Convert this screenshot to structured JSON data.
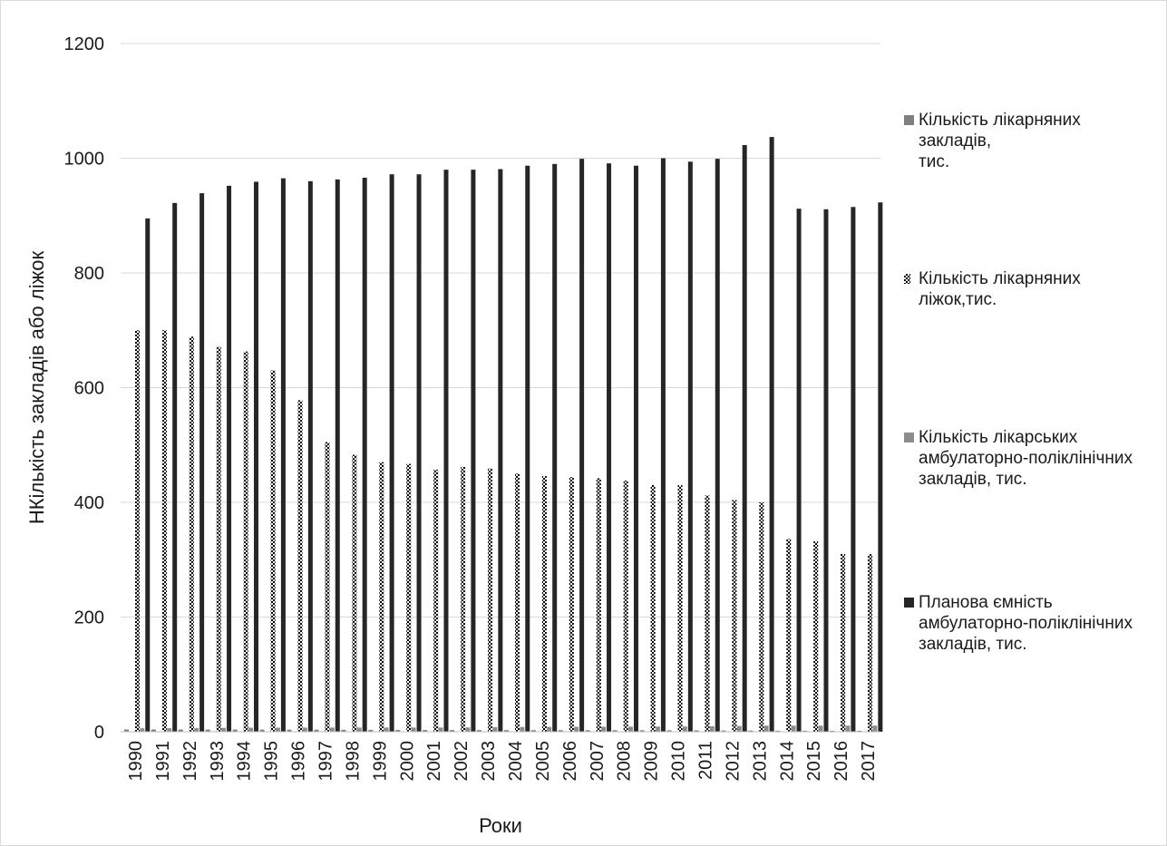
{
  "chart_data": {
    "type": "bar",
    "xlabel": "Роки",
    "ylabel": "НКількість закладів або ліжок",
    "ylim": [
      0,
      1200
    ],
    "yticks": [
      "0",
      "200",
      "400",
      "600",
      "800",
      "1000",
      "1200"
    ],
    "grid": true,
    "legend_position": "right",
    "categories": [
      "1990",
      "1991",
      "1992",
      "1993",
      "1994",
      "1995",
      "1996",
      "1997",
      "1998",
      "1999",
      "2000",
      "2001",
      "2002",
      "2003",
      "2004",
      "2005",
      "2006",
      "2007",
      "2008",
      "2009",
      "2010",
      "2011",
      "2012",
      "2013",
      "2014",
      "2015",
      "2016",
      "2017"
    ],
    "series": [
      {
        "name": "Кількість лікарняних закладів,\nтис.",
        "color": "#7f7f7f",
        "pattern": "solid",
        "values": [
          3.9,
          3.9,
          3.9,
          3.8,
          3.8,
          3.7,
          3.6,
          3.5,
          3.4,
          3.3,
          3.2,
          3.1,
          3.0,
          2.9,
          2.8,
          2.8,
          2.8,
          2.7,
          2.7,
          2.6,
          2.5,
          2.4,
          2.2,
          2.1,
          1.8,
          1.8,
          1.7,
          1.7
        ]
      },
      {
        "name": "Кількість лікарняних ліжок,тис.",
        "color": "#000000",
        "pattern": "checker",
        "values": [
          700,
          700,
          689,
          671,
          663,
          630,
          578,
          505,
          483,
          470,
          467,
          457,
          462,
          459,
          450,
          446,
          444,
          442,
          438,
          430,
          430,
          412,
          404,
          400,
          336,
          332,
          310,
          310
        ]
      },
      {
        "name": "Кількість лікарських амбулаторно-поліклінічних закладів, тис.",
        "color": "#8c8c8c",
        "pattern": "solid",
        "values": [
          6.0,
          6.2,
          6.5,
          6.8,
          7.0,
          7.2,
          7.2,
          7.3,
          7.3,
          7.4,
          7.4,
          7.4,
          7.5,
          8.0,
          8.3,
          8.4,
          8.6,
          8.7,
          8.8,
          9.0,
          9.2,
          9.5,
          10.0,
          10.6,
          10.5,
          10.5,
          10.6,
          10.7
        ]
      },
      {
        "name": "Планова ємність амбулаторно-поліклінічних закладів, тис.",
        "color": "#262626",
        "pattern": "solid",
        "values": [
          895,
          922,
          939,
          952,
          959,
          965,
          960,
          963,
          966,
          972,
          972,
          980,
          980,
          981,
          987,
          990,
          999,
          991,
          987,
          1000,
          994,
          999,
          1023,
          1037,
          912,
          911,
          915,
          923
        ]
      }
    ]
  }
}
